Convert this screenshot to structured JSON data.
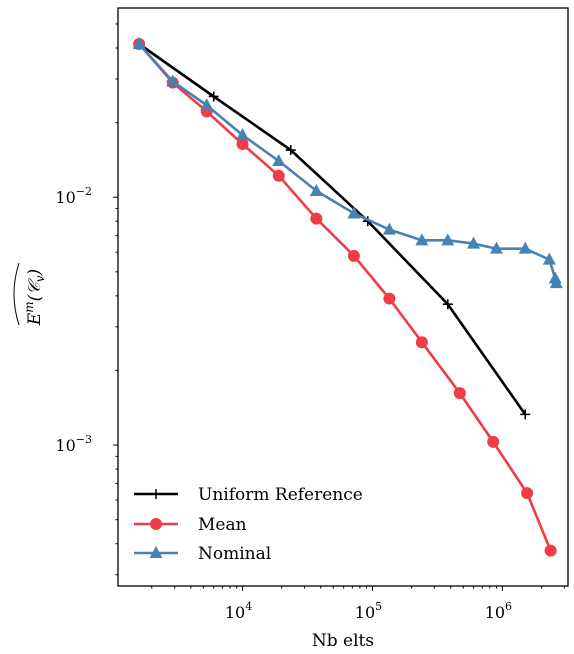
{
  "chart_data": {
    "type": "line",
    "xscale": "log",
    "yscale": "log",
    "xlabel": "Nb elts",
    "ylabel": "E^m(C_v)",
    "xlim": [
      1100,
      3200000
    ],
    "ylim": [
      0.00027,
      0.058
    ],
    "x_ticks": [
      {
        "value": 10000,
        "base": "10",
        "exp": "4"
      },
      {
        "value": 100000,
        "base": "10",
        "exp": "5"
      },
      {
        "value": 1000000,
        "base": "10",
        "exp": "6"
      }
    ],
    "y_ticks": [
      {
        "value": 0.01,
        "base": "10",
        "exp": "−2"
      },
      {
        "value": 0.001,
        "base": "10",
        "exp": "−3"
      }
    ],
    "legend_position": "lower-left",
    "series": [
      {
        "name": "Uniform Reference",
        "color": "#000000",
        "marker": "plus",
        "x": [
          1600,
          6000,
          23500,
          92000,
          380000,
          1500000
        ],
        "y": [
          0.0415,
          0.0255,
          0.0155,
          0.008,
          0.0037,
          0.00133
        ]
      },
      {
        "name": "Mean",
        "color": "#f03c46",
        "marker": "circle",
        "x": [
          1600,
          2900,
          5300,
          10000,
          19000,
          37000,
          72000,
          135000,
          240000,
          470000,
          850000,
          1550000,
          2350000
        ],
        "y": [
          0.0415,
          0.029,
          0.0222,
          0.0164,
          0.0122,
          0.0082,
          0.0058,
          0.0039,
          0.0026,
          0.00162,
          0.00103,
          0.00064,
          0.000375
        ]
      },
      {
        "name": "Nominal",
        "color": "#4682b4",
        "marker": "triangle",
        "x": [
          1600,
          2900,
          5300,
          10000,
          19000,
          37000,
          72000,
          135000,
          240000,
          380000,
          600000,
          900000,
          1500000,
          2300000,
          2550000,
          2600000
        ],
        "y": [
          0.0415,
          0.0293,
          0.0235,
          0.0178,
          0.014,
          0.0106,
          0.0086,
          0.0074,
          0.0067,
          0.0067,
          0.0065,
          0.0062,
          0.0062,
          0.0056,
          0.0047,
          0.0045
        ]
      }
    ]
  }
}
